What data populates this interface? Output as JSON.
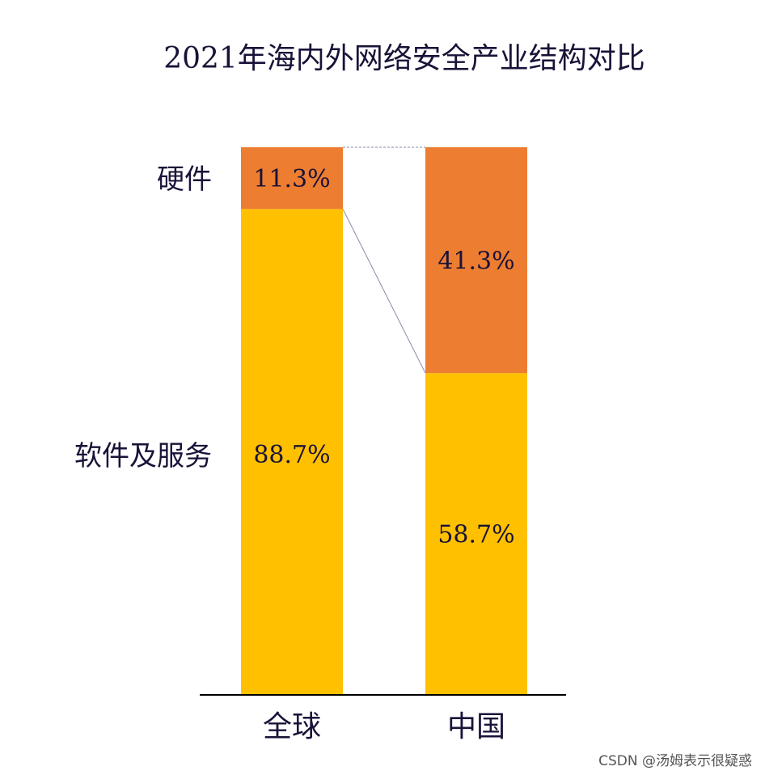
{
  "chart_data": {
    "type": "bar",
    "stacked": true,
    "normalized": true,
    "title": "2021年海内外网络安全产业结构对比",
    "categories": [
      "全球",
      "中国"
    ],
    "series": [
      {
        "name": "软件及服务",
        "values": [
          88.7,
          58.7
        ],
        "labels": [
          "88.7%",
          "58.7%"
        ],
        "color": "#ffc000"
      },
      {
        "name": "硬件",
        "values": [
          11.3,
          41.3
        ],
        "labels": [
          "11.3%",
          "41.3%"
        ],
        "color": "#ed7d31"
      }
    ],
    "ylim": [
      0,
      100
    ],
    "grid": false,
    "legend": "left"
  },
  "watermark": "CSDN @汤姆表示很疑惑",
  "colors": {
    "text": "#1a1238",
    "connector": "#8a8aa8",
    "axis": "#000000"
  }
}
